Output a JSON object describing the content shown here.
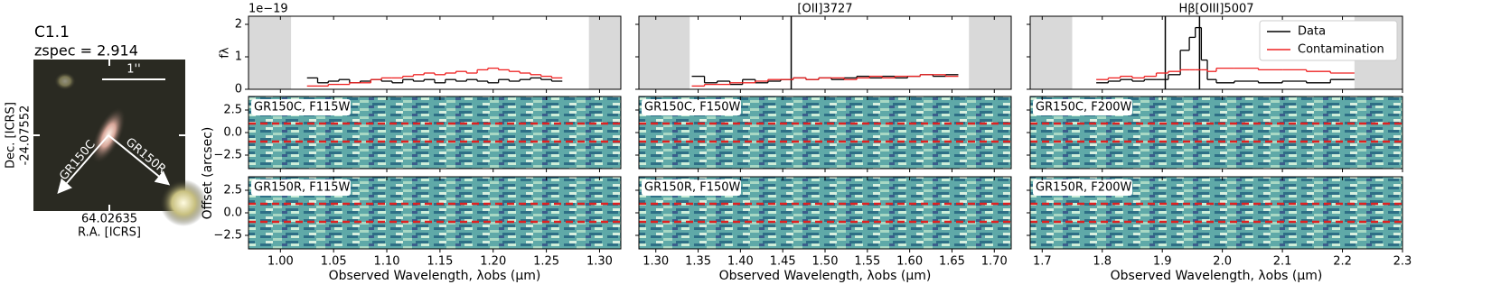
{
  "thumbnail": {
    "title": "C1.1",
    "redshift": "zspec = 2.914",
    "scale_bar": "1''",
    "grisms": [
      "GR150C",
      "GR150R"
    ],
    "ra": "64.02635",
    "ra_label": "R.A. [ICRS]",
    "dec_label": "Dec. [ICRS]",
    "dec": "-24.07552"
  },
  "chart_data": [
    {
      "type": "spectrum",
      "title": null,
      "xlabel": "Observed Wavelength, λobs (μm)",
      "ylabel": "fλ",
      "offset_text": "1e−19",
      "panel_ylabel": "Offset (arcsec)",
      "xlim": [
        0.97,
        1.32
      ],
      "xticks": [
        {
          "value": 1,
          "label": "1.00"
        },
        1.05,
        {
          "value": 1.1,
          "label": "1.10"
        },
        1.15,
        {
          "value": 1.2,
          "label": "1.20"
        },
        1.25,
        {
          "value": 1.3,
          "label": "1.30"
        }
      ],
      "spectrum": {
        "ylim": [
          0,
          2.25
        ],
        "yticks": [
          0,
          1,
          2
        ],
        "masked": [
          [
            0.97,
            1.01
          ],
          [
            1.29,
            1.32
          ]
        ],
        "lines": [],
        "series": [
          {
            "name": "Data",
            "color": "#000000",
            "x": [
              1.03,
              1.04,
              1.05,
              1.06,
              1.07,
              1.08,
              1.09,
              1.1,
              1.11,
              1.12,
              1.13,
              1.14,
              1.15,
              1.16,
              1.17,
              1.18,
              1.19,
              1.2,
              1.21,
              1.22,
              1.23,
              1.24,
              1.25,
              1.26
            ],
            "values": [
              0.35,
              0.2,
              0.25,
              0.3,
              0.2,
              0.25,
              0.3,
              0.25,
              0.2,
              0.3,
              0.25,
              0.3,
              0.2,
              0.3,
              0.25,
              0.3,
              0.25,
              0.2,
              0.3,
              0.25,
              0.3,
              0.35,
              0.3,
              0.25
            ]
          },
          {
            "name": "Contamination",
            "color": "#ee2222",
            "x": [
              1.03,
              1.04,
              1.05,
              1.06,
              1.07,
              1.08,
              1.09,
              1.1,
              1.11,
              1.12,
              1.13,
              1.14,
              1.15,
              1.16,
              1.17,
              1.18,
              1.19,
              1.2,
              1.21,
              1.22,
              1.23,
              1.24,
              1.25,
              1.26
            ],
            "values": [
              0.1,
              0.1,
              0.15,
              0.15,
              0.2,
              0.2,
              0.3,
              0.35,
              0.35,
              0.4,
              0.45,
              0.5,
              0.45,
              0.5,
              0.55,
              0.5,
              0.6,
              0.65,
              0.6,
              0.55,
              0.5,
              0.45,
              0.4,
              0.35
            ]
          }
        ]
      },
      "panels": [
        {
          "label": "GR150C, F115W",
          "ylim": [
            -4,
            4
          ],
          "yticks": [
            2.5,
            {
              "value": 0,
              "label": "0.0"
            },
            {
              "value": -2.5,
              "label": "−2.5"
            }
          ],
          "apertures": [
            1,
            -1
          ]
        },
        {
          "label": "GR150R, F115W",
          "ylim": [
            -4,
            4
          ],
          "yticks": [
            2.5,
            {
              "value": 0,
              "label": "0.0"
            },
            {
              "value": -2.5,
              "label": "−2.5"
            }
          ],
          "apertures": [
            1,
            -1
          ]
        }
      ]
    },
    {
      "type": "spectrum",
      "title": "[OII]3727",
      "xlabel": "Observed Wavelength, λobs (μm)",
      "xlim": [
        1.28,
        1.72
      ],
      "xticks": [
        {
          "value": 1.3,
          "label": "1.30"
        },
        1.35,
        {
          "value": 1.4,
          "label": "1.40"
        },
        1.45,
        {
          "value": 1.5,
          "label": "1.50"
        },
        1.55,
        {
          "value": 1.6,
          "label": "1.60"
        },
        1.65,
        {
          "value": 1.7,
          "label": "1.70"
        }
      ],
      "spectrum": {
        "ylim": [
          0,
          2.25
        ],
        "masked": [
          [
            1.28,
            1.34
          ],
          [
            1.67,
            1.72
          ]
        ],
        "lines": [
          1.46
        ],
        "series": [
          {
            "name": "Data",
            "color": "#000000",
            "x": [
              1.35,
              1.365,
              1.38,
              1.395,
              1.41,
              1.425,
              1.44,
              1.455,
              1.47,
              1.485,
              1.5,
              1.515,
              1.53,
              1.545,
              1.56,
              1.575,
              1.59,
              1.605,
              1.62,
              1.635,
              1.65
            ],
            "values": [
              0.4,
              0.2,
              0.25,
              0.15,
              0.3,
              0.2,
              0.25,
              0.3,
              0.35,
              0.3,
              0.35,
              0.3,
              0.35,
              0.4,
              0.35,
              0.4,
              0.35,
              0.4,
              0.45,
              0.4,
              0.45
            ]
          },
          {
            "name": "Contamination",
            "color": "#ee2222",
            "x": [
              1.35,
              1.365,
              1.38,
              1.395,
              1.41,
              1.425,
              1.44,
              1.455,
              1.47,
              1.485,
              1.5,
              1.515,
              1.53,
              1.545,
              1.56,
              1.575,
              1.59,
              1.605,
              1.62,
              1.635,
              1.65
            ],
            "values": [
              0.1,
              0.15,
              0.15,
              0.2,
              0.2,
              0.25,
              0.3,
              0.3,
              0.35,
              0.3,
              0.35,
              0.35,
              0.3,
              0.35,
              0.4,
              0.35,
              0.4,
              0.4,
              0.45,
              0.45,
              0.4
            ]
          }
        ]
      },
      "panels": [
        {
          "label": "GR150C, F150W",
          "ylim": [
            -4,
            4
          ],
          "apertures": [
            1,
            -1
          ]
        },
        {
          "label": "GR150R, F150W",
          "ylim": [
            -4,
            4
          ],
          "apertures": [
            1,
            -1
          ]
        }
      ]
    },
    {
      "type": "spectrum",
      "title": "Hβ[OIII]5007",
      "xlabel": "Observed Wavelength, λobs (μm)",
      "legend": "upper right",
      "xlim": [
        1.68,
        2.3
      ],
      "xticks": [
        1.7,
        1.8,
        1.9,
        {
          "value": 2,
          "label": "2.0"
        },
        2.1,
        2.2,
        2.3
      ],
      "spectrum": {
        "ylim": [
          0,
          2.25
        ],
        "masked": [
          [
            1.68,
            1.75
          ],
          [
            2.22,
            2.3
          ]
        ],
        "lines": [
          1.905,
          1.962
        ],
        "series": [
          {
            "name": "Data",
            "color": "#000000",
            "x": [
              1.8,
              1.82,
              1.84,
              1.86,
              1.88,
              1.9,
              1.92,
              1.94,
              1.95,
              1.96,
              1.97,
              1.98,
              2.0,
              2.04,
              2.08,
              2.12,
              2.16,
              2.2
            ],
            "values": [
              0.2,
              0.25,
              0.3,
              0.25,
              0.3,
              0.3,
              0.45,
              1.2,
              1.6,
              1.9,
              0.9,
              0.3,
              0.2,
              0.25,
              0.2,
              0.25,
              0.2,
              0.3
            ]
          },
          {
            "name": "Contamination",
            "color": "#ee2222",
            "x": [
              1.8,
              1.82,
              1.84,
              1.86,
              1.88,
              1.9,
              1.92,
              1.94,
              1.95,
              1.96,
              1.97,
              1.98,
              2.0,
              2.04,
              2.08,
              2.12,
              2.16,
              2.2
            ],
            "values": [
              0.3,
              0.35,
              0.4,
              0.35,
              0.4,
              0.5,
              0.55,
              0.6,
              0.6,
              0.6,
              0.6,
              0.55,
              0.65,
              0.65,
              0.6,
              0.6,
              0.55,
              0.5
            ]
          }
        ]
      },
      "panels": [
        {
          "label": "GR150C, F200W",
          "ylim": [
            -4,
            4
          ],
          "apertures": [
            1,
            -1
          ]
        },
        {
          "label": "GR150R, F200W",
          "ylim": [
            -4,
            4
          ],
          "apertures": [
            1,
            -1
          ]
        }
      ]
    }
  ]
}
